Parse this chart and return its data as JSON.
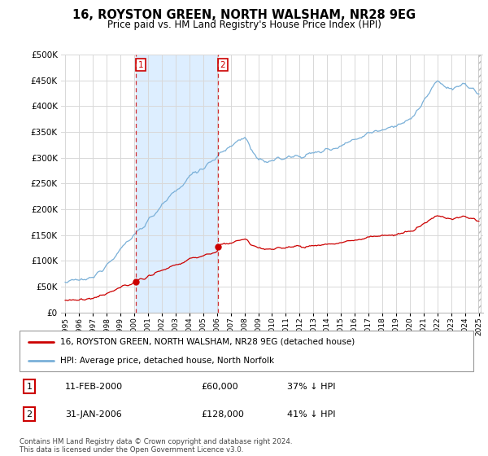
{
  "title": "16, ROYSTON GREEN, NORTH WALSHAM, NR28 9EG",
  "subtitle": "Price paid vs. HM Land Registry's House Price Index (HPI)",
  "legend_line1": "16, ROYSTON GREEN, NORTH WALSHAM, NR28 9EG (detached house)",
  "legend_line2": "HPI: Average price, detached house, North Norfolk",
  "sale1_date": "11-FEB-2000",
  "sale1_price": "£60,000",
  "sale1_hpi": "37% ↓ HPI",
  "sale1_year": 2000.12,
  "sale1_value": 60000,
  "sale2_date": "31-JAN-2006",
  "sale2_price": "£128,000",
  "sale2_hpi": "41% ↓ HPI",
  "sale2_year": 2006.08,
  "sale2_value": 128000,
  "hpi_color": "#7ab0d8",
  "sale_color": "#cc0000",
  "vline_color": "#cc0000",
  "shade_color": "#ddeeff",
  "background_color": "#ffffff",
  "plot_bg_color": "#ffffff",
  "grid_color": "#d8d8d8",
  "footer": "Contains HM Land Registry data © Crown copyright and database right 2024.\nThis data is licensed under the Open Government Licence v3.0.",
  "ylim": [
    0,
    500000
  ],
  "yticks": [
    0,
    50000,
    100000,
    150000,
    200000,
    250000,
    300000,
    350000,
    400000,
    450000,
    500000
  ]
}
